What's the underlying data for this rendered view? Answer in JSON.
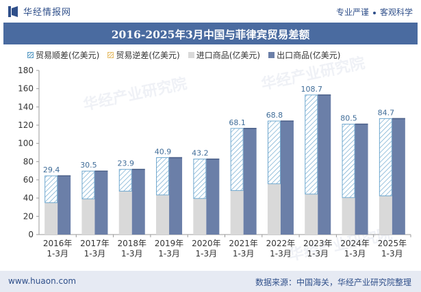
{
  "header": {
    "brand_name": "华经情报网",
    "tagline_left": "专业严谨",
    "tagline_right": "客观科学"
  },
  "footer": {
    "url": "www.huaon.com",
    "source": "数据来源：中国海关，华经产业研究院整理"
  },
  "watermark_text": "华经产业研究院",
  "colors": {
    "brand_blue": "#2f4f8a",
    "title_band": "#4a6ba0",
    "import_bar": "#d9d9d9",
    "export_bar": "#6b7fa8",
    "surplus_hatch": "#5f9fc7",
    "deficit_hatch": "#e6c070",
    "data_label": "#3f6c98"
  },
  "chart_data": {
    "type": "bar",
    "title": "2016-2025年3月中国与菲律宾贸易差额",
    "xlabel": "",
    "ylabel": "",
    "ylim": [
      0,
      180
    ],
    "yticks": [
      0,
      20,
      40,
      60,
      80,
      100,
      120,
      140,
      160,
      180
    ],
    "legend_position": "top-left",
    "grid": false,
    "categories": [
      "2016年\n1-3月",
      "2017年\n1-3月",
      "2018年\n1-3月",
      "2019年\n1-3月",
      "2020年\n1-3月",
      "2021年\n1-3月",
      "2022年\n1-3月",
      "2023年\n1-3月",
      "2024年\n1-3月",
      "2025年\n1-3月"
    ],
    "series": [
      {
        "name": "贸易顺差(亿美元)",
        "values": [
          29.4,
          30.5,
          23.9,
          40.9,
          43.2,
          68.1,
          68.8,
          108.7,
          80.5,
          84.7
        ]
      },
      {
        "name": "贸易逆差(亿美元)",
        "values": [
          0,
          0,
          0,
          0,
          0,
          0,
          0,
          0,
          0,
          0
        ]
      },
      {
        "name": "进口商品(亿美元)",
        "values": [
          35.0,
          39.1,
          47.6,
          43.5,
          39.6,
          48.3,
          55.7,
          44.4,
          40.6,
          42.5
        ]
      },
      {
        "name": "出口商品(亿美元)",
        "values": [
          64.4,
          69.6,
          71.5,
          84.4,
          82.8,
          116.4,
          124.5,
          153.1,
          121.1,
          127.2
        ]
      }
    ]
  }
}
